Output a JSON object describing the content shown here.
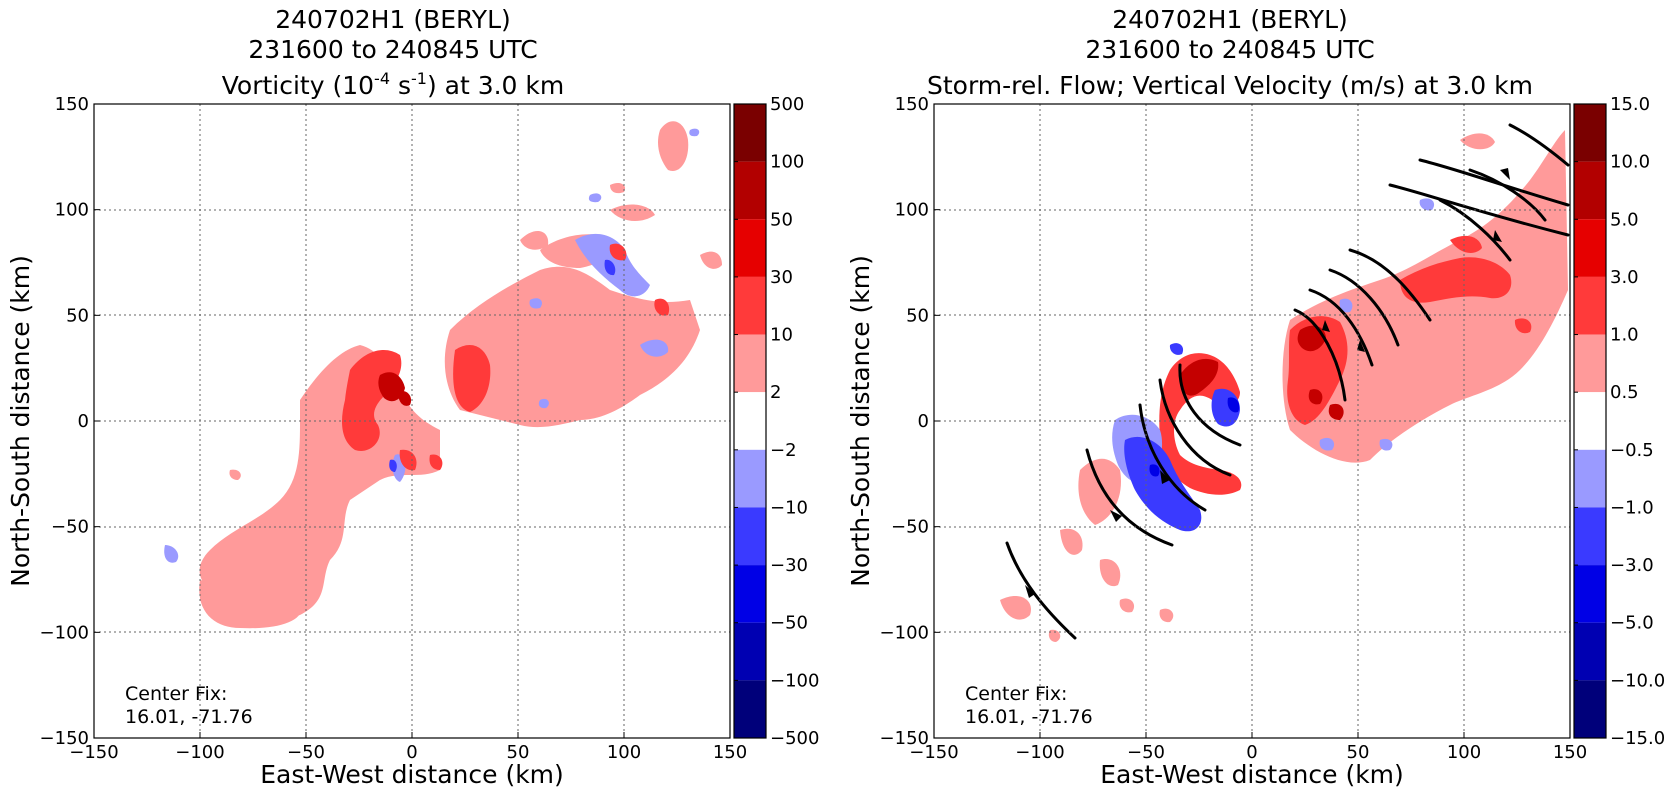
{
  "chart_data": [
    {
      "type": "heatmap",
      "title": [
        "240702H1 (BERYL)",
        "231600 to 240845 UTC"
      ],
      "title_line3": {
        "prefix": "Vorticity (10",
        "exp1": "-4",
        "mid": " s",
        "exp2": "-1",
        "suffix": ") at 3.0 km"
      },
      "xlabel": "East-West distance (km)",
      "ylabel": "North-South distance (km)",
      "xlim": [
        -150,
        150
      ],
      "ylim": [
        -150,
        150
      ],
      "xticks": [
        "−150",
        "−100",
        "−50",
        "0",
        "50",
        "100",
        "150"
      ],
      "yticks": [
        "150",
        "100",
        "50",
        "0",
        "−50",
        "−100",
        "−150"
      ],
      "grid": true,
      "annotation": [
        "Center Fix:",
        "16.01, -71.76"
      ],
      "colorbar": {
        "levels": [
          "500",
          "100",
          "50",
          "30",
          "10",
          "2",
          "−2",
          "−10",
          "−30",
          "−50",
          "−100",
          "−500"
        ],
        "colors": [
          "#7a0000",
          "#b20000",
          "#e60000",
          "#ff3a3a",
          "#ff9a9a",
          "#ffffff",
          "#9a9aff",
          "#3a3aff",
          "#0000e6",
          "#0000b2",
          "#00007a"
        ]
      }
    },
    {
      "type": "heatmap",
      "title": [
        "240702H1 (BERYL)",
        "231600 to 240845 UTC",
        "Storm-rel. Flow; Vertical Velocity (m/s) at 3.0 km"
      ],
      "xlabel": "East-West distance (km)",
      "ylabel": "North-South distance (km)",
      "xlim": [
        -150,
        150
      ],
      "ylim": [
        -150,
        150
      ],
      "xticks": [
        "−150",
        "−100",
        "−50",
        "0",
        "50",
        "100",
        "150"
      ],
      "yticks": [
        "150",
        "100",
        "50",
        "0",
        "−50",
        "−100",
        "−150"
      ],
      "grid": true,
      "annotation": [
        "Center Fix:",
        "16.01, -71.76"
      ],
      "colorbar": {
        "levels": [
          "15.0",
          "10.0",
          "5.0",
          "3.0",
          "1.0",
          "0.5",
          "−0.5",
          "−1.0",
          "−3.0",
          "−5.0",
          "−10.0",
          "−15.0"
        ],
        "colors": [
          "#7a0000",
          "#b20000",
          "#e60000",
          "#ff3a3a",
          "#ff9a9a",
          "#ffffff",
          "#9a9aff",
          "#3a3aff",
          "#0000e6",
          "#0000b2",
          "#00007a"
        ]
      }
    }
  ]
}
